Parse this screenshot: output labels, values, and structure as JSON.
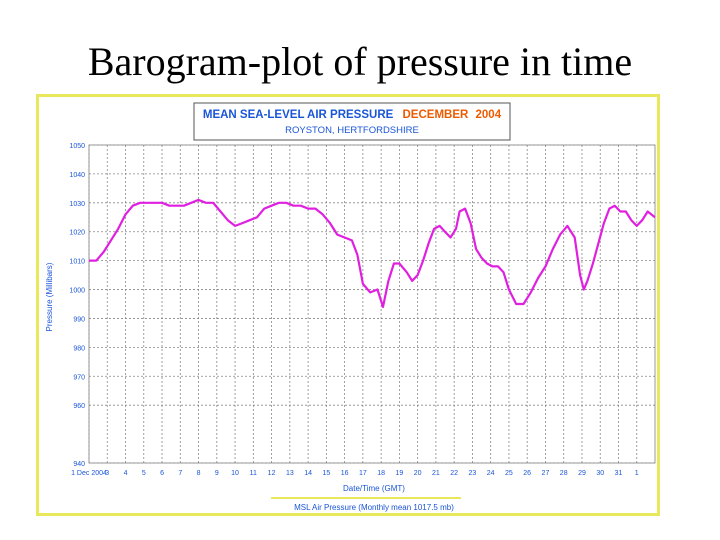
{
  "slide": {
    "title": "Barogram-plot of pressure in time"
  },
  "chart_data": {
    "type": "line",
    "title_part1": "MEAN SEA-LEVEL AIR PRESSURE",
    "title_month": "DECEMBER",
    "title_year": "2004",
    "subtitle": "ROYSTON, HERTFORDSHIRE",
    "xlabel": "Date/Time (GMT)",
    "ylabel": "Pressure (Millibars)",
    "ylim": [
      940,
      1050
    ],
    "yticks": [
      1050,
      1040,
      1030,
      1020,
      1010,
      1000,
      990,
      980,
      970,
      960,
      940
    ],
    "xlim": [
      1,
      32
    ],
    "xticks": [
      {
        "x": 1,
        "label": "1 Dec 2004"
      },
      {
        "x": 2,
        "label": "3"
      },
      {
        "x": 3,
        "label": "4"
      },
      {
        "x": 4,
        "label": "5"
      },
      {
        "x": 5,
        "label": "6"
      },
      {
        "x": 6,
        "label": "7"
      },
      {
        "x": 7,
        "label": "8"
      },
      {
        "x": 8,
        "label": "9"
      },
      {
        "x": 9,
        "label": "10"
      },
      {
        "x": 10,
        "label": "11"
      },
      {
        "x": 11,
        "label": "12"
      },
      {
        "x": 12,
        "label": "13"
      },
      {
        "x": 13,
        "label": "14"
      },
      {
        "x": 14,
        "label": "15"
      },
      {
        "x": 15,
        "label": "16"
      },
      {
        "x": 16,
        "label": "17"
      },
      {
        "x": 17,
        "label": "18"
      },
      {
        "x": 18,
        "label": "19"
      },
      {
        "x": 19,
        "label": "20"
      },
      {
        "x": 20,
        "label": "21"
      },
      {
        "x": 21,
        "label": "22"
      },
      {
        "x": 22,
        "label": "23"
      },
      {
        "x": 23,
        "label": "24"
      },
      {
        "x": 24,
        "label": "25"
      },
      {
        "x": 25,
        "label": "26"
      },
      {
        "x": 26,
        "label": "27"
      },
      {
        "x": 27,
        "label": "28"
      },
      {
        "x": 28,
        "label": "29"
      },
      {
        "x": 29,
        "label": "30"
      },
      {
        "x": 30,
        "label": "31"
      },
      {
        "x": 31,
        "label": "1"
      }
    ],
    "grid": true,
    "legend_position": "bottom",
    "series": [
      {
        "name": "MSL Air Pressure (Monthly mean 1017.5 mb)",
        "color": "#e020e0",
        "points": [
          [
            1,
            1010
          ],
          [
            1.4,
            1010
          ],
          [
            1.8,
            1013
          ],
          [
            2.2,
            1017
          ],
          [
            2.6,
            1021
          ],
          [
            3.0,
            1026
          ],
          [
            3.4,
            1029
          ],
          [
            3.8,
            1030
          ],
          [
            4.2,
            1030
          ],
          [
            4.6,
            1030
          ],
          [
            5.0,
            1030
          ],
          [
            5.4,
            1029
          ],
          [
            5.8,
            1029
          ],
          [
            6.2,
            1029
          ],
          [
            6.6,
            1030
          ],
          [
            7.0,
            1031
          ],
          [
            7.4,
            1030
          ],
          [
            7.8,
            1030
          ],
          [
            8.2,
            1027
          ],
          [
            8.6,
            1024
          ],
          [
            9.0,
            1022
          ],
          [
            9.4,
            1023
          ],
          [
            9.8,
            1024
          ],
          [
            10.2,
            1025
          ],
          [
            10.6,
            1028
          ],
          [
            11.0,
            1029
          ],
          [
            11.4,
            1030
          ],
          [
            11.8,
            1030
          ],
          [
            12.2,
            1029
          ],
          [
            12.6,
            1029
          ],
          [
            13.0,
            1028
          ],
          [
            13.4,
            1028
          ],
          [
            13.8,
            1026
          ],
          [
            14.2,
            1023
          ],
          [
            14.6,
            1019
          ],
          [
            15.0,
            1018
          ],
          [
            15.4,
            1017
          ],
          [
            15.7,
            1012
          ],
          [
            16.0,
            1002
          ],
          [
            16.4,
            999
          ],
          [
            16.8,
            1000
          ],
          [
            17.1,
            994
          ],
          [
            17.4,
            1003
          ],
          [
            17.7,
            1009
          ],
          [
            18.0,
            1009
          ],
          [
            18.4,
            1006
          ],
          [
            18.7,
            1003
          ],
          [
            19.0,
            1005
          ],
          [
            19.3,
            1010
          ],
          [
            19.6,
            1016
          ],
          [
            19.9,
            1021
          ],
          [
            20.2,
            1022
          ],
          [
            20.5,
            1020
          ],
          [
            20.8,
            1018
          ],
          [
            21.1,
            1021
          ],
          [
            21.3,
            1027
          ],
          [
            21.6,
            1028
          ],
          [
            21.9,
            1023
          ],
          [
            22.2,
            1014
          ],
          [
            22.5,
            1011
          ],
          [
            22.8,
            1009
          ],
          [
            23.1,
            1008
          ],
          [
            23.4,
            1008
          ],
          [
            23.7,
            1006
          ],
          [
            24.0,
            1000
          ],
          [
            24.4,
            995
          ],
          [
            24.8,
            995
          ],
          [
            25.2,
            999
          ],
          [
            25.6,
            1004
          ],
          [
            26.0,
            1008
          ],
          [
            26.4,
            1014
          ],
          [
            26.8,
            1019
          ],
          [
            27.2,
            1022
          ],
          [
            27.6,
            1018
          ],
          [
            27.9,
            1005
          ],
          [
            28.1,
            1000
          ],
          [
            28.3,
            1003
          ],
          [
            28.6,
            1009
          ],
          [
            28.9,
            1016
          ],
          [
            29.2,
            1023
          ],
          [
            29.5,
            1028
          ],
          [
            29.8,
            1029
          ],
          [
            30.1,
            1027
          ],
          [
            30.4,
            1027
          ],
          [
            30.7,
            1024
          ],
          [
            31.0,
            1022
          ],
          [
            31.3,
            1024
          ],
          [
            31.6,
            1027
          ],
          [
            32.0,
            1025
          ]
        ]
      }
    ]
  }
}
